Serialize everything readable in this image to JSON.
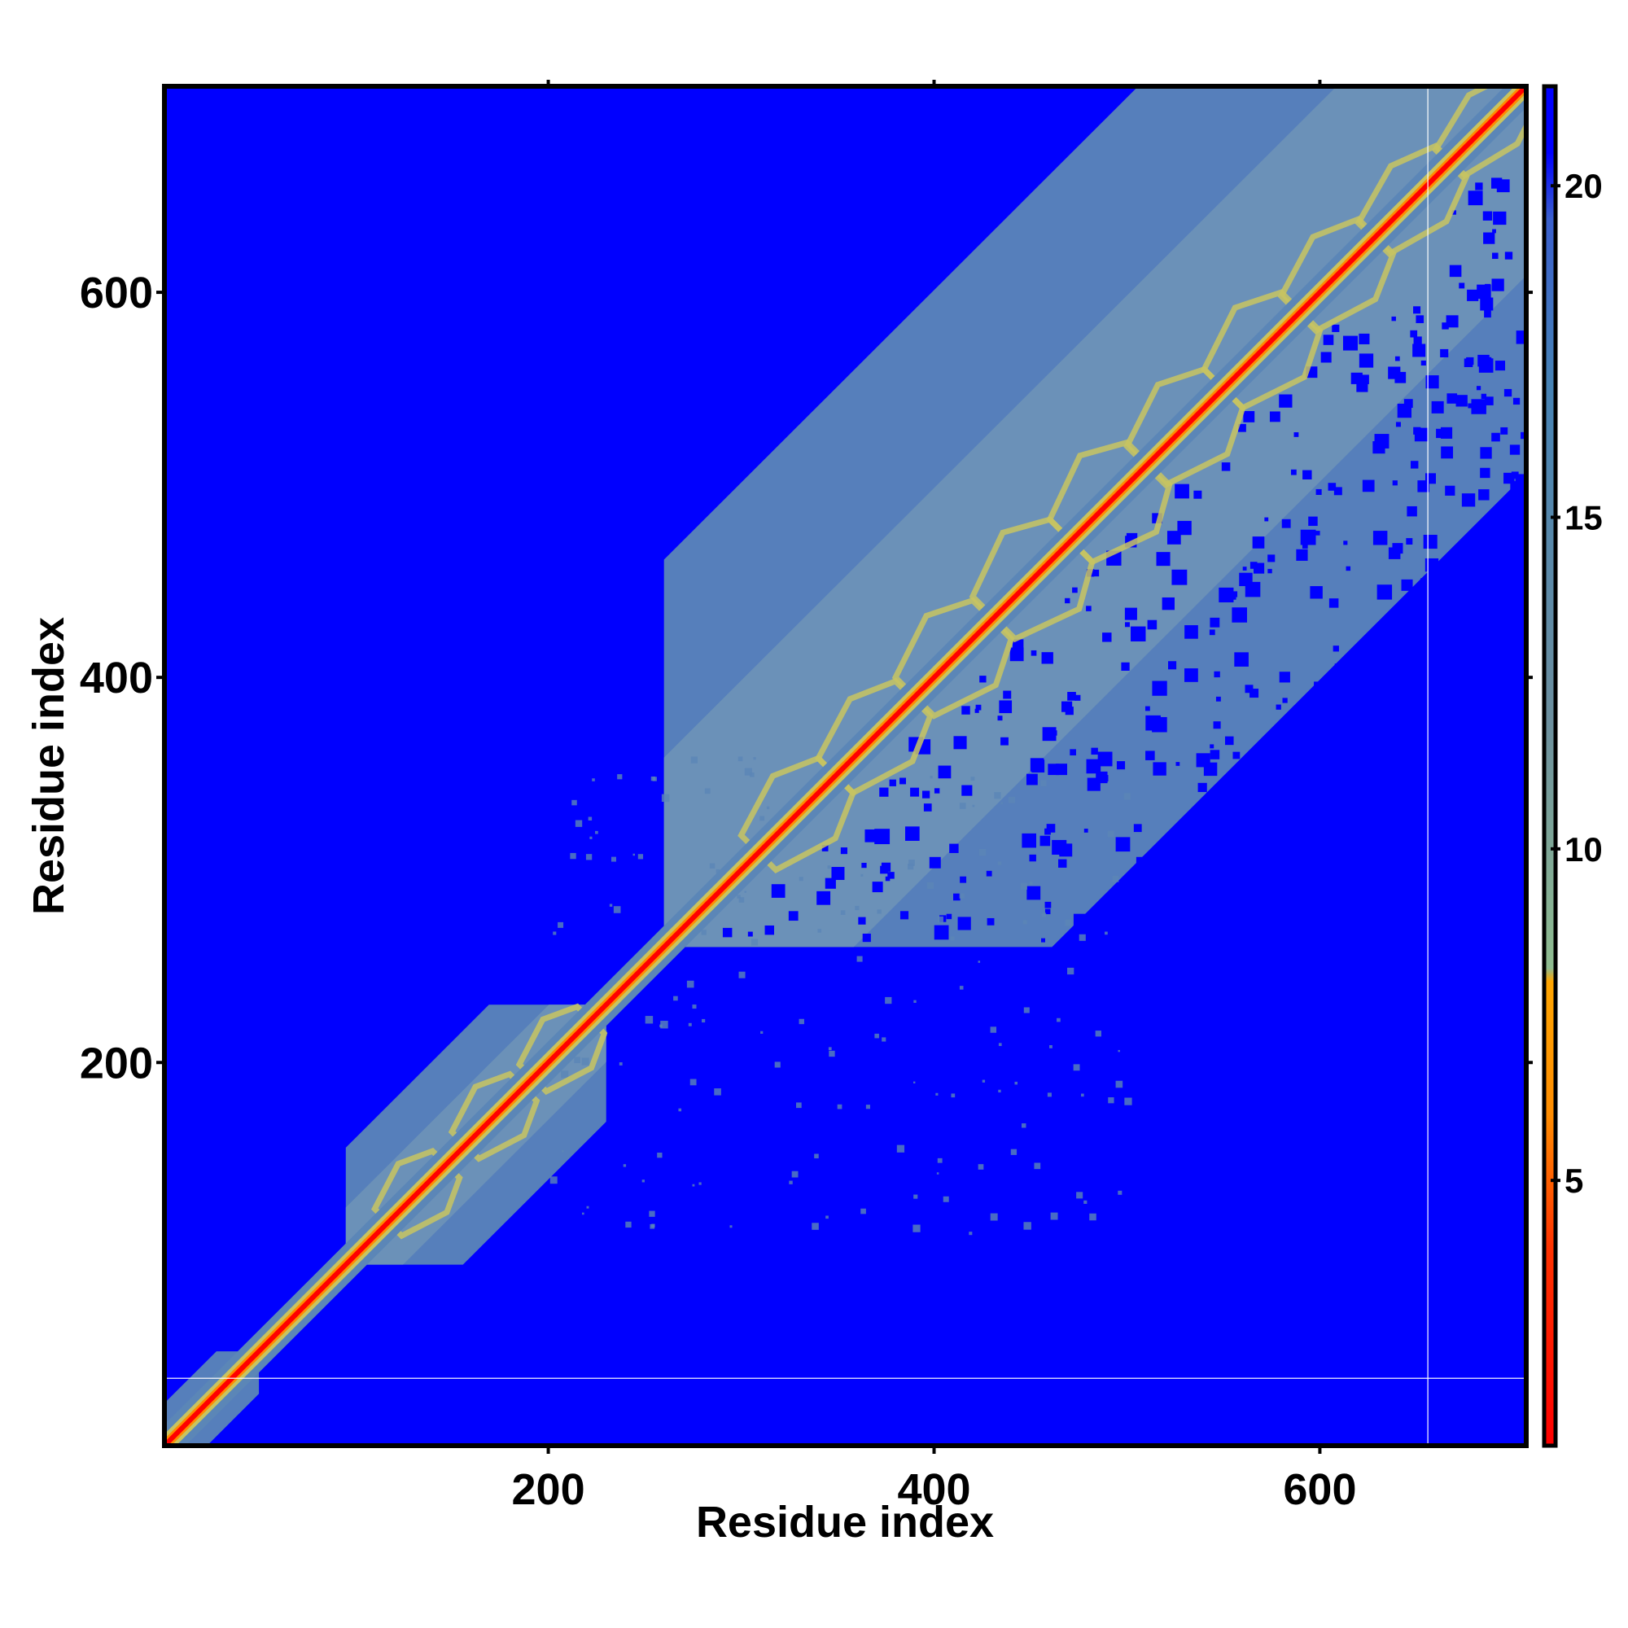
{
  "chart_data": {
    "type": "heatmap",
    "title": "",
    "xlabel": "Residue index",
    "ylabel": "Residue index",
    "xlim": [
      1,
      707
    ],
    "ylim": [
      1,
      707
    ],
    "x_ticks": [
      200,
      400,
      600
    ],
    "y_ticks": [
      200,
      400,
      600
    ],
    "x_tick_labels": [
      "200",
      "400",
      "600"
    ],
    "y_tick_labels": [
      "200",
      "400",
      "600"
    ],
    "colorbar": {
      "range": [
        1,
        21.5
      ],
      "ticks": [
        5,
        10,
        15,
        20
      ],
      "tick_labels": [
        "5",
        "10",
        "15",
        "20"
      ],
      "colors": [
        {
          "value": 1,
          "color": "#ff0000"
        },
        {
          "value": 4,
          "color": "#ff3300"
        },
        {
          "value": 6,
          "color": "#ff8c00"
        },
        {
          "value": 8,
          "color": "#ffa500"
        },
        {
          "value": 8.2,
          "color": "#8fbc8f"
        },
        {
          "value": 12,
          "color": "#6b8e9e"
        },
        {
          "value": 17,
          "color": "#4682b4"
        },
        {
          "value": 19.5,
          "color": "#3a5fcd"
        },
        {
          "value": 20.5,
          "color": "#0000ff"
        },
        {
          "value": 21.5,
          "color": "#0000ff"
        }
      ]
    },
    "background_value": 21.5,
    "diagonal_value": 1,
    "colors": {
      "far": "#0000ff",
      "mid": "#5b86b7",
      "near": "#c8c460",
      "close": "#ff8c00",
      "contact": "#ff0000"
    },
    "domains": [
      {
        "start": 1,
        "end": 50,
        "value": 15
      },
      {
        "start": 95,
        "end": 230,
        "value": 15
      },
      {
        "start": 260,
        "end": 707,
        "value": 15
      }
    ],
    "reference_lines": {
      "x": 656,
      "y": 36
    },
    "grid": false,
    "legend": "colorbar-right"
  }
}
